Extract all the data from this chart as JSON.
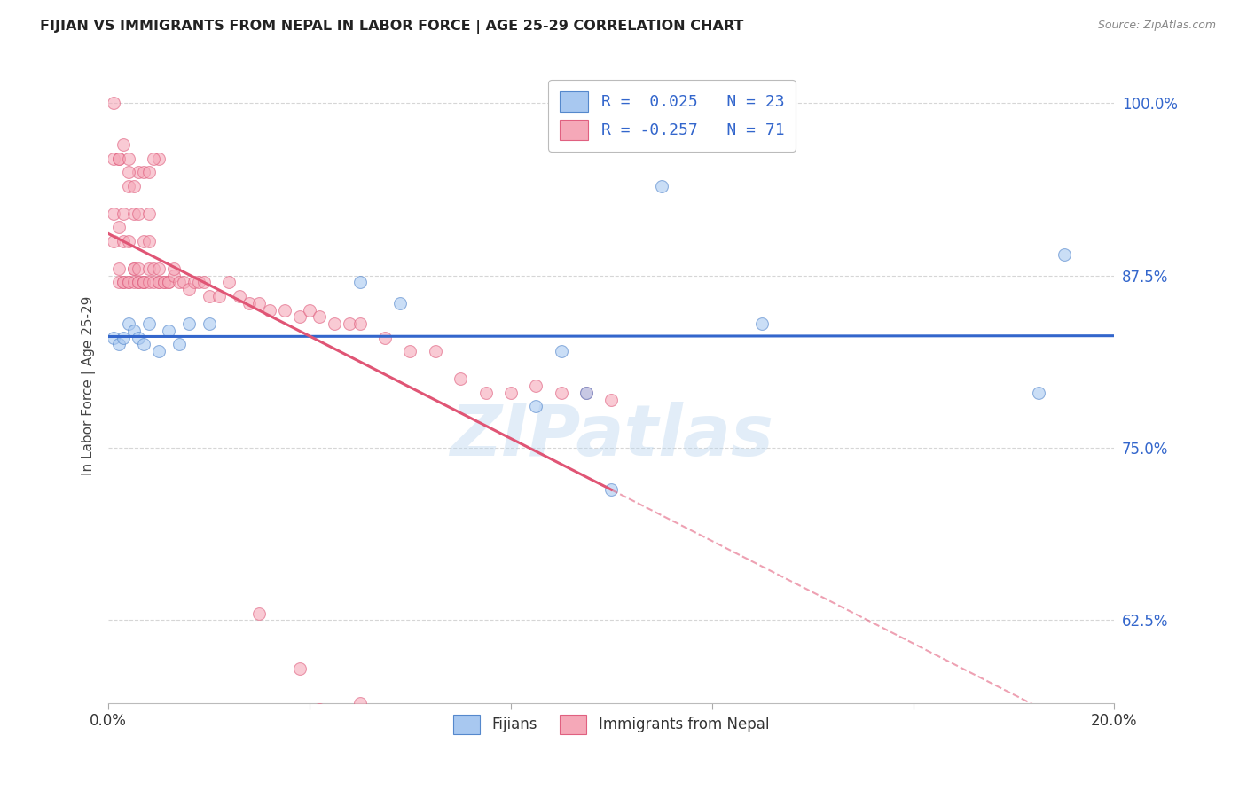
{
  "title": "FIJIAN VS IMMIGRANTS FROM NEPAL IN LABOR FORCE | AGE 25-29 CORRELATION CHART",
  "source": "Source: ZipAtlas.com",
  "ylabel": "In Labor Force | Age 25-29",
  "ytick_labels": [
    "62.5%",
    "75.0%",
    "87.5%",
    "100.0%"
  ],
  "ytick_values": [
    0.625,
    0.75,
    0.875,
    1.0
  ],
  "xlim": [
    0.0,
    0.2
  ],
  "ylim": [
    0.565,
    1.025
  ],
  "legend_R1": "R =  0.025   N = 23",
  "legend_R2": "R = -0.257   N = 71",
  "blue_fill": "#A8C8F0",
  "blue_edge": "#5588CC",
  "pink_fill": "#F5A8B8",
  "pink_edge": "#E06080",
  "blue_line": "#3366CC",
  "pink_line": "#E05575",
  "watermark": "ZIPatlas",
  "fijian_x": [
    0.001,
    0.002,
    0.003,
    0.004,
    0.005,
    0.006,
    0.007,
    0.008,
    0.01,
    0.012,
    0.014,
    0.016,
    0.02,
    0.05,
    0.058,
    0.085,
    0.09,
    0.095,
    0.1,
    0.11,
    0.13,
    0.185,
    0.19
  ],
  "fijian_y": [
    0.83,
    0.825,
    0.83,
    0.84,
    0.835,
    0.83,
    0.825,
    0.84,
    0.82,
    0.835,
    0.825,
    0.84,
    0.84,
    0.87,
    0.855,
    0.78,
    0.82,
    0.79,
    0.72,
    0.94,
    0.84,
    0.79,
    0.89
  ],
  "nepal_x": [
    0.001,
    0.001,
    0.001,
    0.002,
    0.002,
    0.002,
    0.002,
    0.003,
    0.003,
    0.003,
    0.003,
    0.004,
    0.004,
    0.004,
    0.004,
    0.005,
    0.005,
    0.005,
    0.005,
    0.006,
    0.006,
    0.006,
    0.006,
    0.007,
    0.007,
    0.007,
    0.007,
    0.008,
    0.008,
    0.008,
    0.009,
    0.009,
    0.01,
    0.01,
    0.01,
    0.011,
    0.011,
    0.012,
    0.012,
    0.013,
    0.013,
    0.014,
    0.015,
    0.016,
    0.017,
    0.018,
    0.019,
    0.02,
    0.022,
    0.024,
    0.026,
    0.028,
    0.03,
    0.032,
    0.035,
    0.038,
    0.04,
    0.042,
    0.045,
    0.048,
    0.05,
    0.055,
    0.06,
    0.065,
    0.07,
    0.075,
    0.08,
    0.085,
    0.09,
    0.095,
    0.1
  ],
  "nepal_y": [
    0.92,
    0.9,
    0.96,
    0.87,
    0.91,
    0.96,
    0.88,
    0.92,
    0.87,
    0.87,
    0.9,
    0.87,
    0.9,
    0.87,
    0.94,
    0.87,
    0.92,
    0.88,
    0.88,
    0.87,
    0.92,
    0.87,
    0.88,
    0.87,
    0.9,
    0.87,
    0.87,
    0.9,
    0.87,
    0.88,
    0.88,
    0.87,
    0.88,
    0.87,
    0.87,
    0.87,
    0.87,
    0.87,
    0.87,
    0.875,
    0.88,
    0.87,
    0.87,
    0.865,
    0.87,
    0.87,
    0.87,
    0.86,
    0.86,
    0.87,
    0.86,
    0.855,
    0.855,
    0.85,
    0.85,
    0.845,
    0.85,
    0.845,
    0.84,
    0.84,
    0.84,
    0.83,
    0.82,
    0.82,
    0.8,
    0.79,
    0.79,
    0.795,
    0.79,
    0.79,
    0.785
  ],
  "nepal_x_outliers": [
    0.001,
    0.002,
    0.003,
    0.004,
    0.006,
    0.007,
    0.005,
    0.008,
    0.01,
    0.008,
    0.009,
    0.004,
    0.03,
    0.038,
    0.042,
    0.05
  ],
  "nepal_y_outliers": [
    1.0,
    0.96,
    0.97,
    0.96,
    0.95,
    0.95,
    0.94,
    0.95,
    0.96,
    0.92,
    0.96,
    0.95,
    0.63,
    0.59,
    0.56,
    0.565
  ],
  "dot_size": 100,
  "dot_alpha": 0.6,
  "background_color": "#ffffff",
  "grid_color": "#cccccc"
}
